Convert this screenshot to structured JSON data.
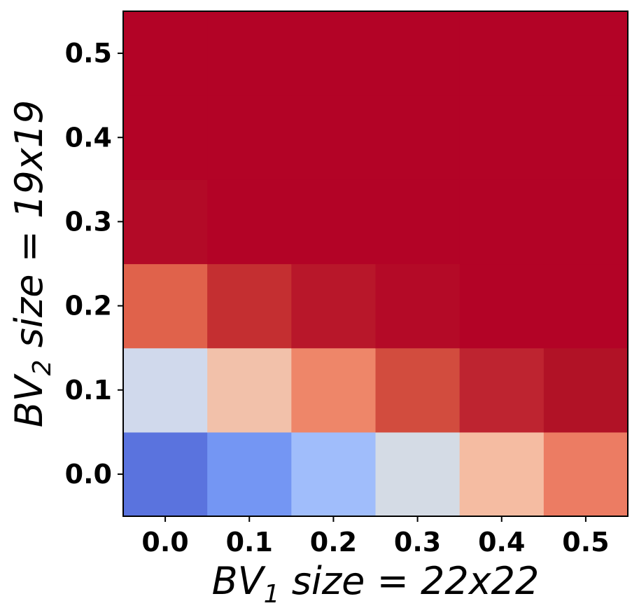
{
  "chart_data": {
    "type": "heatmap",
    "title": "",
    "xlabel": {
      "main": "BV",
      "subscript": "1",
      "suffix": " size = 22x22"
    },
    "ylabel": {
      "main": "BV",
      "subscript": "2",
      "suffix": " size = 19x19"
    },
    "x_categories": [
      "0.0",
      "0.1",
      "0.2",
      "0.3",
      "0.4",
      "0.5"
    ],
    "y_categories": [
      "0.0",
      "0.1",
      "0.2",
      "0.3",
      "0.4",
      "0.5"
    ],
    "colormap": "coolwarm",
    "grid": false,
    "legend": "none",
    "cell_colors": [
      [
        "#5a73de",
        "#7496f3",
        "#a0bdfb",
        "#d4dbe5",
        "#f5bca2",
        "#ec7c63"
      ],
      [
        "#d0d9ec",
        "#f2c1aa",
        "#ee8669",
        "#d24c3e",
        "#be2430",
        "#b11226"
      ],
      [
        "#e0624b",
        "#c42f31",
        "#b8172a",
        "#b40a27",
        "#b30326",
        "#b30326"
      ],
      [
        "#b30a27",
        "#b30326",
        "#b30326",
        "#b30326",
        "#b30326",
        "#b30326"
      ],
      [
        "#b30326",
        "#b30326",
        "#b30326",
        "#b30326",
        "#b30326",
        "#b30326"
      ],
      [
        "#b30326",
        "#b30326",
        "#b30326",
        "#b30326",
        "#b30326",
        "#b30326"
      ]
    ]
  }
}
